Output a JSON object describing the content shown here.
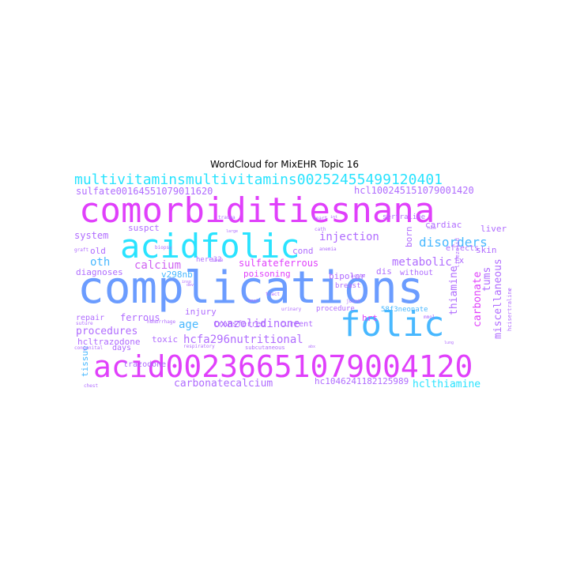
{
  "title": "WordCloud for MixEHR Topic 16",
  "palette": {
    "magenta": "#e040fb",
    "cyan": "#29e3ff",
    "blue": "#6b9cff",
    "lightblue": "#48b8ff",
    "violet": "#b06cff",
    "purple": "#cf62f2",
    "pink": "#f05cf7"
  },
  "words": [
    {
      "text": "multivitaminsmultivitamins00252455499120401",
      "color": "cyan",
      "weight": 18
    },
    {
      "text": "comorbiditiesnana",
      "color": "magenta",
      "weight": 44
    },
    {
      "text": "acidfolic",
      "color": "cyan",
      "weight": 42
    },
    {
      "text": "complications",
      "color": "blue",
      "weight": 56
    },
    {
      "text": "folic",
      "color": "lightblue",
      "weight": 44
    },
    {
      "text": "acid0023665107900412​0",
      "color": "magenta",
      "weight": 38
    },
    {
      "text": "sulfate00164551079011620",
      "color": "violet",
      "weight": 12
    },
    {
      "text": "hcl1002451510790014​20",
      "color": "violet",
      "weight": 12
    },
    {
      "text": "injection",
      "color": "violet",
      "weight": 14
    },
    {
      "text": "disorders",
      "color": "lightblue",
      "weight": 16
    },
    {
      "text": "system",
      "color": "violet",
      "weight": 12
    },
    {
      "text": "suspct",
      "color": "violet",
      "weight": 11
    },
    {
      "text": "cond",
      "color": "violet",
      "weight": 11
    },
    {
      "text": "liver",
      "color": "violet",
      "weight": 11
    },
    {
      "text": "skin",
      "color": "violet",
      "weight": 11
    },
    {
      "text": "calcium",
      "color": "purple",
      "weight": 14
    },
    {
      "text": "sulfateferrous",
      "color": "magenta",
      "weight": 12
    },
    {
      "text": "metabolic",
      "color": "violet",
      "weight": 14
    },
    {
      "text": "bipolor",
      "color": "violet",
      "weight": 11
    },
    {
      "text": "oth",
      "color": "lightblue",
      "weight": 14
    },
    {
      "text": "diagnoses",
      "color": "violet",
      "weight": 11
    },
    {
      "text": "v298nb",
      "color": "lightblue",
      "weight": 11
    },
    {
      "text": "here32",
      "color": "violet",
      "weight": 9
    },
    {
      "text": "poisoning",
      "color": "magenta",
      "weight": 11
    },
    {
      "text": "dis",
      "color": "violet",
      "weight": 11
    },
    {
      "text": "without",
      "color": "violet",
      "weight": 10
    },
    {
      "text": "cardiac",
      "color": "violet",
      "weight": 11
    },
    {
      "text": "effects",
      "color": "violet",
      "weight": 10
    },
    {
      "text": "fx",
      "color": "violet",
      "weight": 11
    },
    {
      "text": "thiamine",
      "color": "violet",
      "weight": 13
    },
    {
      "text": "carbonate",
      "color": "magenta",
      "weight": 13
    },
    {
      "text": "miscellaneous",
      "color": "violet",
      "weight": 13
    },
    {
      "text": "tums",
      "color": "violet",
      "weight": 13
    },
    {
      "text": "obsrv",
      "color": "violet",
      "weight": 11
    },
    {
      "text": "age",
      "color": "lightblue",
      "weight": 14
    },
    {
      "text": "ferrous",
      "color": "violet",
      "weight": 12
    },
    {
      "text": "injury",
      "color": "violet",
      "weight": 11
    },
    {
      "text": "oxazolidinone",
      "color": "violet",
      "weight": 14
    },
    {
      "text": "procedures",
      "color": "violet",
      "weight": 13
    },
    {
      "text": "repair",
      "color": "violet",
      "weight": 10
    },
    {
      "text": "toxic",
      "color": "violet",
      "weight": 11
    },
    {
      "text": "hcfa296nutritional",
      "color": "violet",
      "weight": 14
    },
    {
      "text": "hcltrazodone",
      "color": "violet",
      "weight": 11
    },
    {
      "text": "transferred",
      "color": "violet",
      "weight": 10
    },
    {
      "text": "current",
      "color": "violet",
      "weight": 10
    },
    {
      "text": "days",
      "color": "violet",
      "weight": 10
    },
    {
      "text": "hrt",
      "color": "magenta",
      "weight": 11
    },
    {
      "text": "tissue",
      "color": "lightblue",
      "weight": 11
    },
    {
      "text": "trazodone",
      "color": "violet",
      "weight": 10
    },
    {
      "text": "carbonatecalcium",
      "color": "violet",
      "weight": 13
    },
    {
      "text": "hc1046241182125989",
      "color": "violet",
      "weight": 11
    },
    {
      "text": "hclthiamine",
      "color": "cyan",
      "weight": 13
    },
    {
      "text": "old",
      "color": "violet",
      "weight": 11
    },
    {
      "text": "born",
      "color": "violet",
      "weight": 11
    },
    {
      "text": "58f3neonate",
      "color": "lightblue",
      "weight": 9
    },
    {
      "text": "breast",
      "color": "violet",
      "weight": 9
    },
    {
      "text": "procedure",
      "color": "violet",
      "weight": 9
    },
    {
      "text": "sertraline",
      "color": "violet",
      "weight": 9
    },
    {
      "text": "trauma",
      "color": "violet",
      "weight": 6
    },
    {
      "text": "heart",
      "color": "violet",
      "weight": 6
    },
    {
      "text": "cath",
      "color": "violet",
      "weight": 6
    },
    {
      "text": "graft",
      "color": "violet",
      "weight": 6
    },
    {
      "text": "biopsy",
      "color": "violet",
      "weight": 6
    },
    {
      "text": "anemia",
      "color": "violet",
      "weight": 6
    },
    {
      "text": "subcutaneous",
      "color": "violet",
      "weight": 7
    },
    {
      "text": "respiratory",
      "color": "violet",
      "weight": 6
    },
    {
      "text": "joint",
      "color": "violet",
      "weight": 6
    },
    {
      "text": "acute",
      "color": "violet",
      "weight": 6
    },
    {
      "text": "tract",
      "color": "violet",
      "weight": 6
    },
    {
      "text": "suture",
      "color": "violet",
      "weight": 6
    },
    {
      "text": "congenital",
      "color": "violet",
      "weight": 6
    },
    {
      "text": "chest",
      "color": "violet",
      "weight": 6
    },
    {
      "text": "hcisertraline",
      "color": "violet",
      "weight": 7
    },
    {
      "text": "linezolid",
      "color": "violet",
      "weight": 7
    },
    {
      "text": "urinary",
      "color": "violet",
      "weight": 6
    },
    {
      "text": "hemorrhage",
      "color": "violet",
      "weight": 6
    },
    {
      "text": "bone",
      "color": "violet",
      "weight": 6
    },
    {
      "text": "mmol",
      "color": "violet",
      "weight": 6
    },
    {
      "text": "tube",
      "color": "violet",
      "weight": 5
    },
    {
      "text": "insp",
      "color": "violet",
      "weight": 5
    },
    {
      "text": "large",
      "color": "violet",
      "weight": 5
    },
    {
      "text": "renal",
      "color": "violet",
      "weight": 5
    },
    {
      "text": "lung",
      "color": "violet",
      "weight": 5
    },
    {
      "text": "abx",
      "color": "violet",
      "weight": 5
    },
    {
      "text": "dev",
      "color": "violet",
      "weight": 5
    },
    {
      "text": "int",
      "color": "violet",
      "weight": 5
    }
  ]
}
